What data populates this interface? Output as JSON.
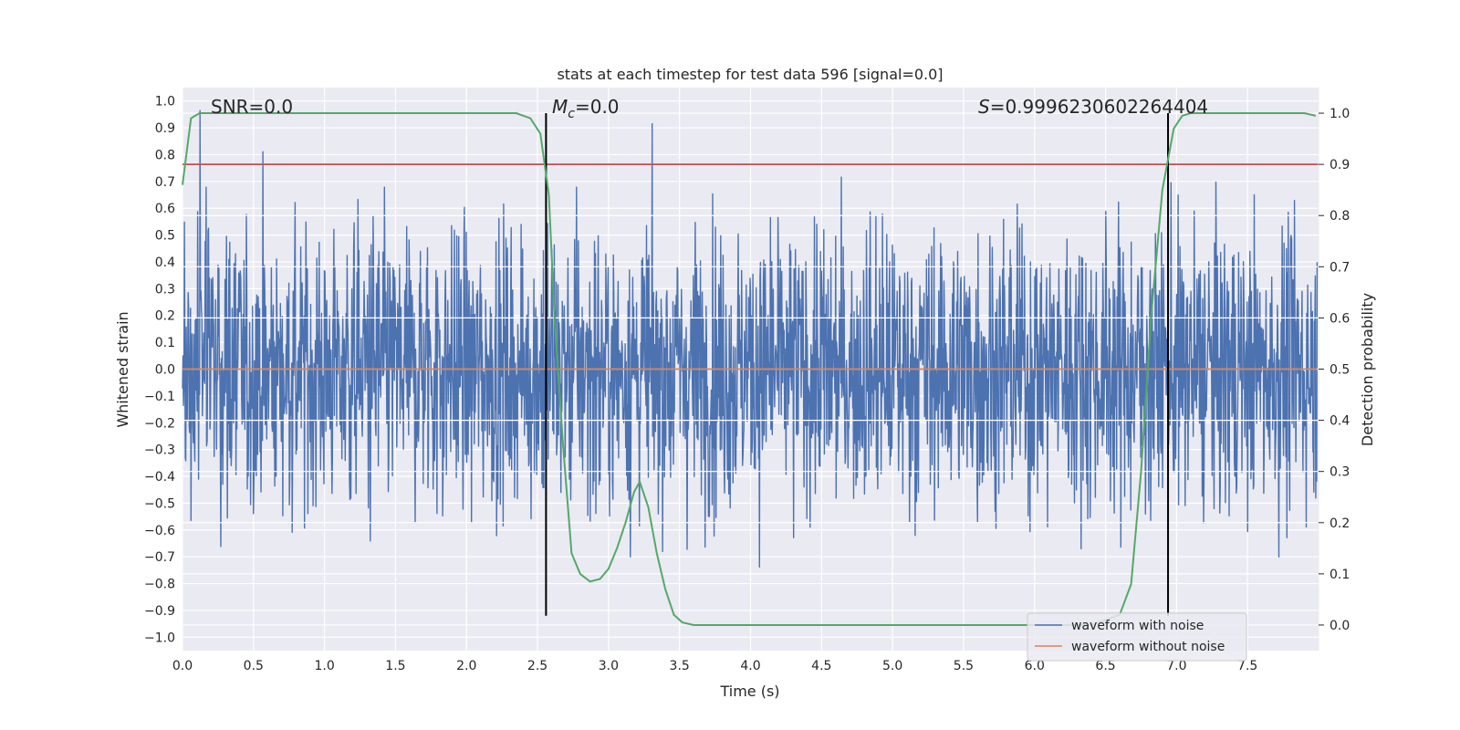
{
  "chart_data": {
    "type": "line",
    "title": "stats at each timestep for test data 596 [signal=0.0]",
    "xlabel": "Time (s)",
    "ylabel_left": "Whitened strain",
    "ylabel_right": "Detection probability",
    "xlim": [
      0.0,
      8.0
    ],
    "ylim_left": [
      -1.05,
      1.05
    ],
    "ylim_right": [
      -0.05,
      1.05
    ],
    "x_ticks": [
      "0.0",
      "0.5",
      "1.0",
      "1.5",
      "2.0",
      "2.5",
      "3.0",
      "3.5",
      "4.0",
      "4.5",
      "5.0",
      "5.5",
      "6.0",
      "6.5",
      "7.0",
      "7.5"
    ],
    "y_ticks_left": [
      "1.0",
      "0.9",
      "0.8",
      "0.7",
      "0.6",
      "0.5",
      "0.4",
      "0.3",
      "0.2",
      "0.1",
      "0.0",
      "−0.1",
      "−0.2",
      "−0.3",
      "−0.4",
      "−0.5",
      "−0.6",
      "−0.7",
      "−0.8",
      "−0.9",
      "−1.0"
    ],
    "y_ticks_right": [
      "1.0",
      "0.9",
      "0.8",
      "0.7",
      "0.6",
      "0.5",
      "0.4",
      "0.3",
      "0.2",
      "0.1",
      "0.0"
    ],
    "annotations": {
      "snr": "SNR=0.0",
      "mc_symbol": "M",
      "mc_sub": "c",
      "mc_value": "=0.0",
      "s_symbol": "S",
      "s_value": "=0.9996230602264404"
    },
    "threshold": 0.9,
    "vertical_markers": [
      2.56,
      6.94
    ],
    "legend": [
      "waveform with noise",
      "waveform without noise"
    ],
    "series": [
      {
        "name": "waveform with noise",
        "color": "#4c72b0",
        "description": "noise-only whitened strain, amplitude within about [-0.93, 0.99]"
      },
      {
        "name": "waveform without noise",
        "color": "#dd8452",
        "x": [
          0.0,
          7.99
        ],
        "values": [
          0.0,
          0.0
        ]
      },
      {
        "name": "detection probability",
        "color": "#55a868",
        "x": [
          0.0,
          0.06,
          0.12,
          0.2,
          1.0,
          2.0,
          2.35,
          2.45,
          2.52,
          2.58,
          2.62,
          2.68,
          2.74,
          2.8,
          2.87,
          2.94,
          3.0,
          3.06,
          3.12,
          3.18,
          3.22,
          3.28,
          3.34,
          3.4,
          3.46,
          3.52,
          3.6,
          4.0,
          5.0,
          6.0,
          6.4,
          6.6,
          6.68,
          6.75,
          6.82,
          6.9,
          6.98,
          7.04,
          7.1,
          7.3,
          7.6,
          7.9,
          7.98
        ],
        "values": [
          0.86,
          0.99,
          1.0,
          1.0,
          1.0,
          1.0,
          1.0,
          0.99,
          0.96,
          0.84,
          0.6,
          0.35,
          0.14,
          0.1,
          0.085,
          0.09,
          0.11,
          0.15,
          0.2,
          0.26,
          0.28,
          0.23,
          0.14,
          0.07,
          0.02,
          0.005,
          0.0,
          0.0,
          0.0,
          0.0,
          0.0,
          0.02,
          0.08,
          0.3,
          0.6,
          0.85,
          0.97,
          0.995,
          1.0,
          1.0,
          1.0,
          1.0,
          0.995
        ]
      }
    ]
  },
  "colors": {
    "plot_bg": "#eaeaf2",
    "grid": "#ffffff",
    "noise": "#4c72b0",
    "clean": "#dd8452",
    "probability": "#55a868",
    "threshold": "#c44e52",
    "marker": "#000000"
  }
}
